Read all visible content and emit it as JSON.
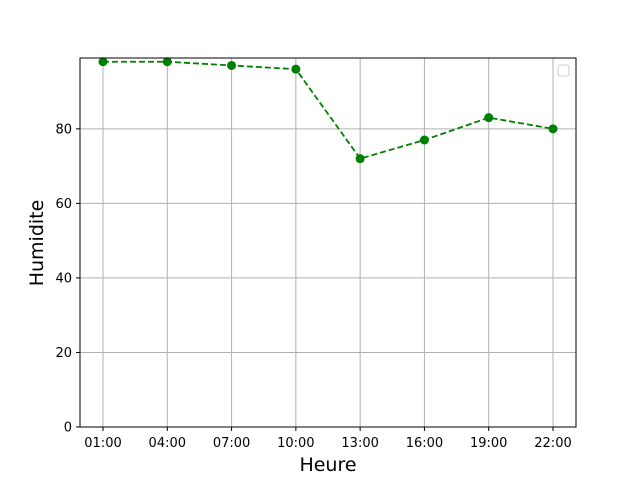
{
  "chart_data": {
    "type": "line",
    "title": "",
    "xlabel": "Heure",
    "ylabel": "Humidite",
    "categories": [
      "01:00",
      "04:00",
      "07:00",
      "10:00",
      "13:00",
      "16:00",
      "19:00",
      "22:00"
    ],
    "series": [
      {
        "values": [
          98,
          98,
          97,
          96,
          72,
          77,
          83,
          80
        ],
        "color": "#008000",
        "line_style": "dashed",
        "marker": "circle"
      }
    ],
    "ylim": [
      0,
      99
    ],
    "yticks": [
      0,
      20,
      40,
      60,
      80
    ],
    "grid": true,
    "legend": {
      "placement": "top-right",
      "entries": []
    }
  }
}
